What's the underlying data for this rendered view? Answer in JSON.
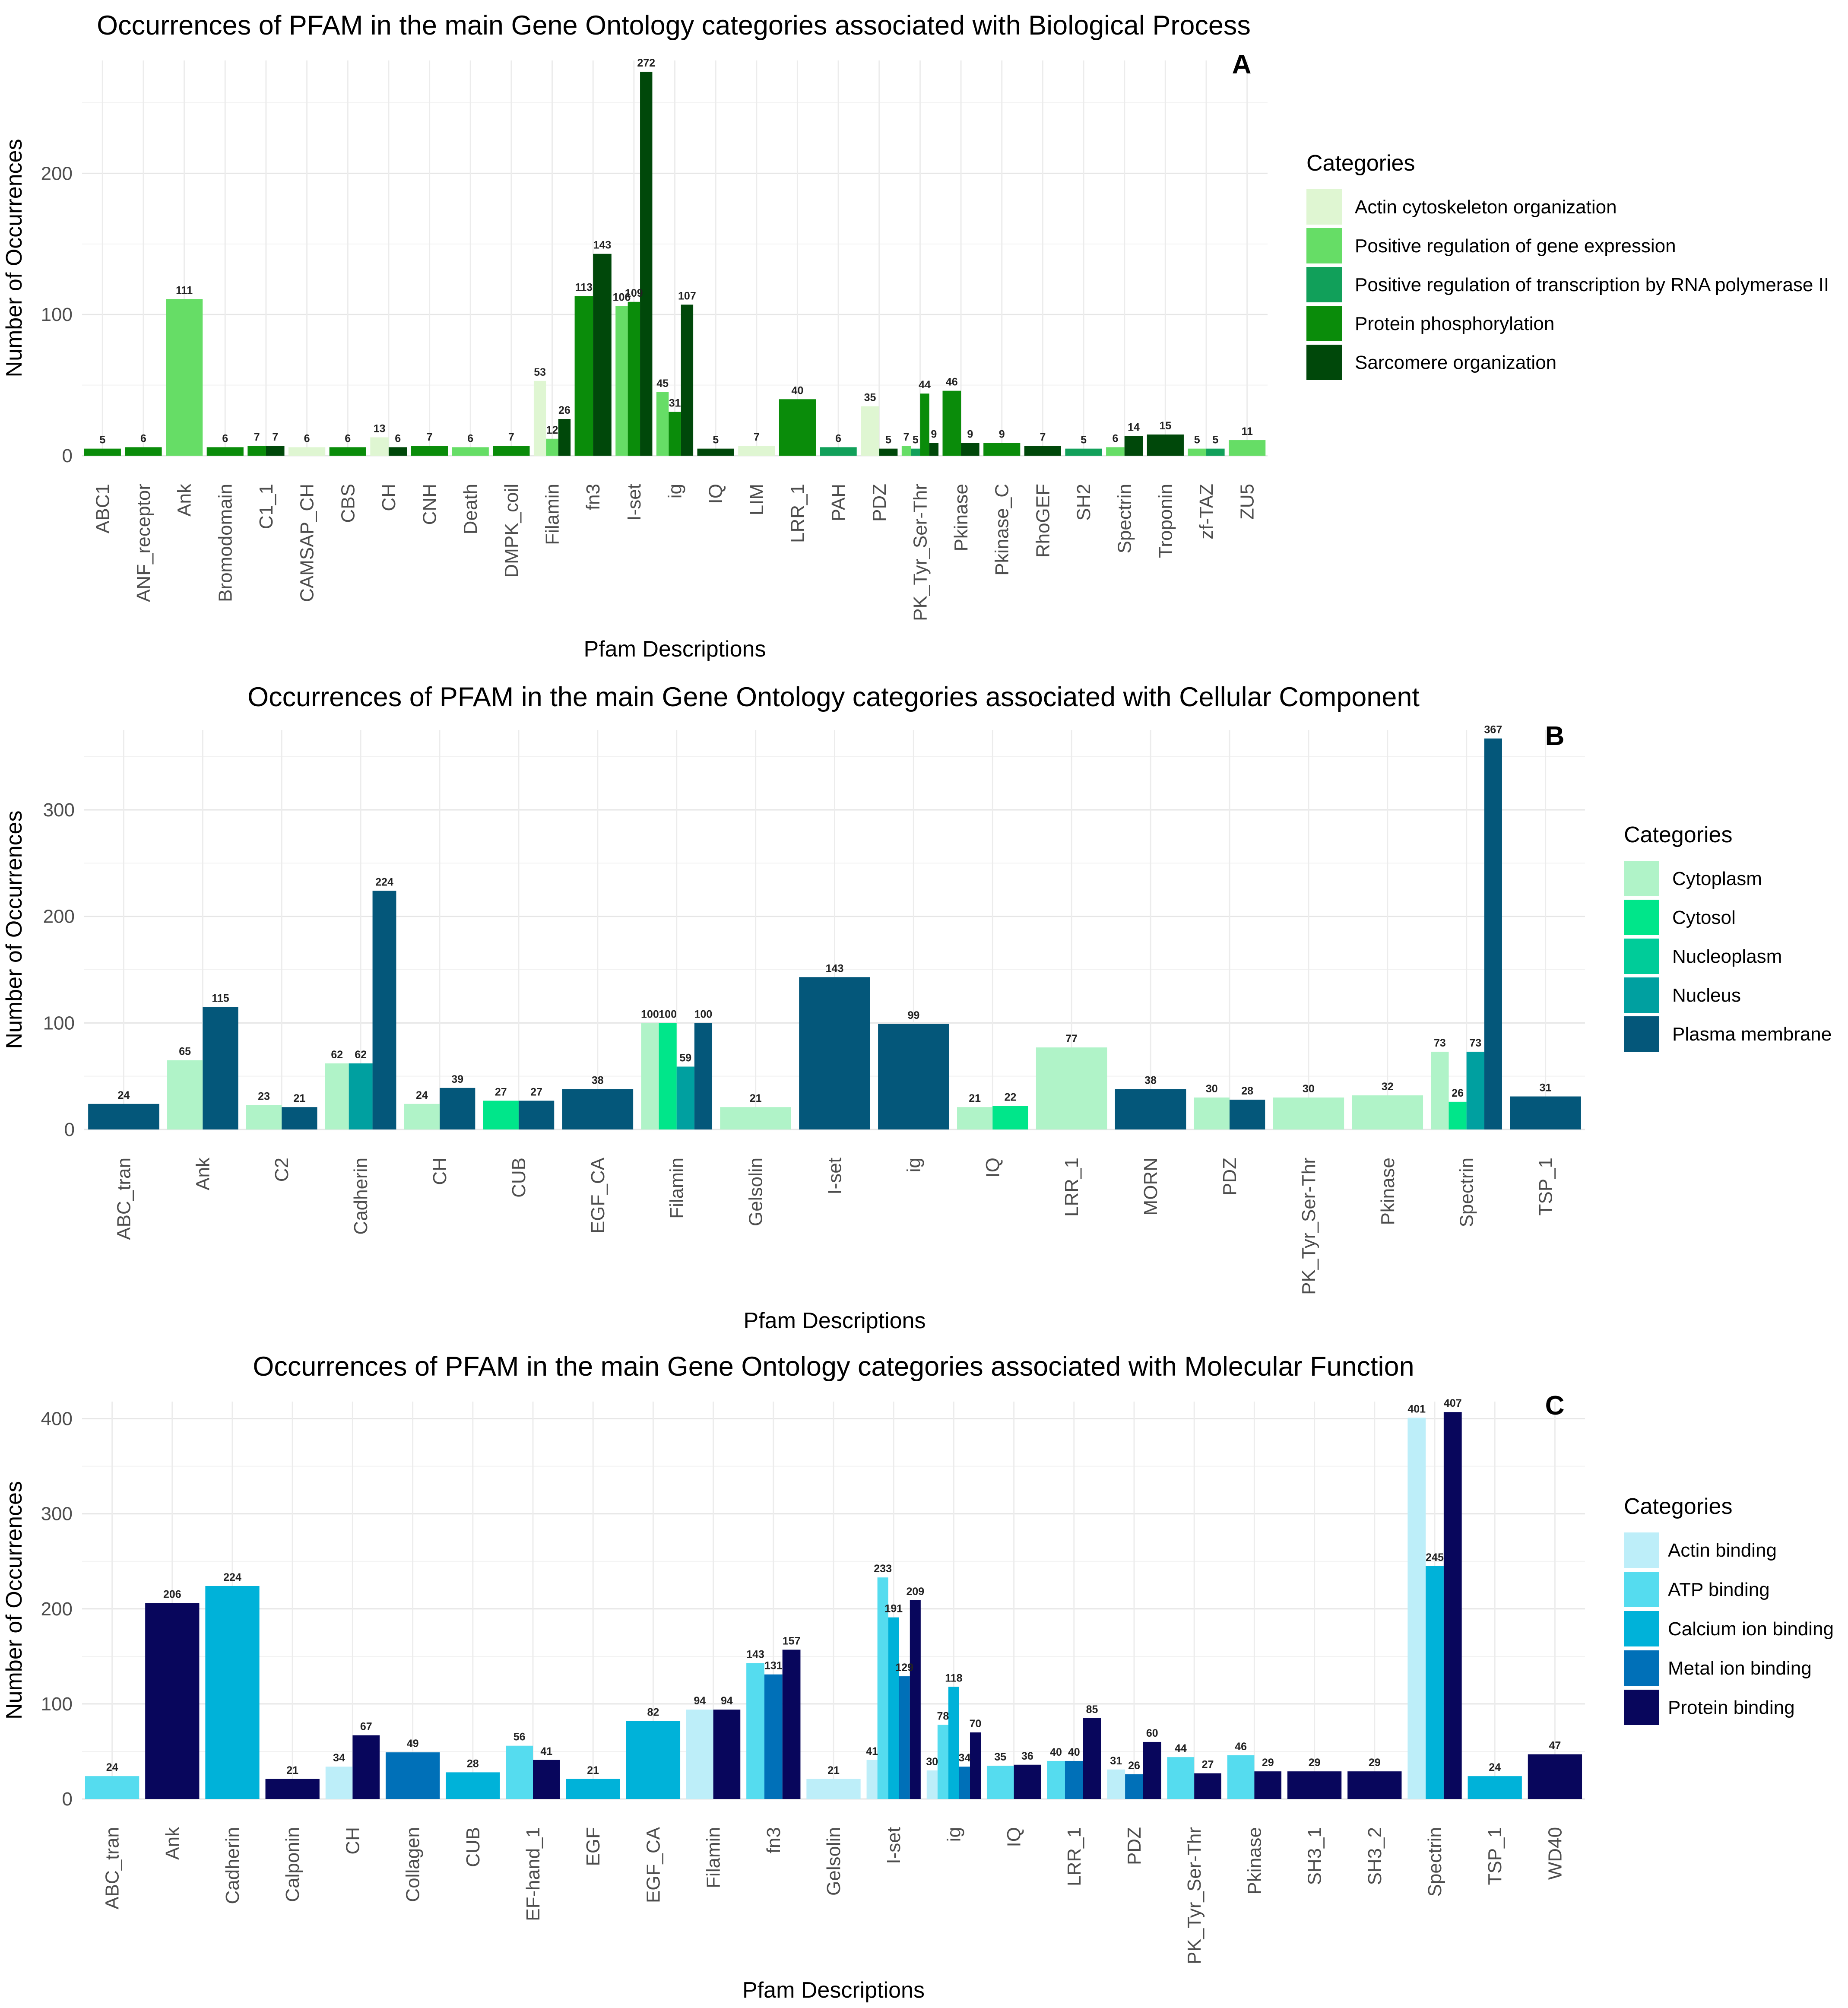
{
  "chart_data": [
    {
      "type": "bar",
      "panel": "A",
      "title": "Occurrences of PFAM in the main Gene Ontology categories associated with Biological Process",
      "xlabel": "Pfam Descriptions",
      "ylabel": "Number of Occurrences",
      "ylim": [
        0,
        280
      ],
      "yticks": [
        0,
        100,
        200
      ],
      "grid": true,
      "legend_title": "Categories",
      "legend_position": "right",
      "categories": [
        "ABC1",
        "ANF_receptor",
        "Ank",
        "Bromodomain",
        "C1_1",
        "CAMSAP_CH",
        "CBS",
        "CH",
        "CNH",
        "Death",
        "DMPK_coil",
        "Filamin",
        "fn3",
        "I-set",
        "ig",
        "IQ",
        "LIM",
        "LRR_1",
        "PAH",
        "PDZ",
        "PK_Tyr_Ser-Thr",
        "Pkinase",
        "Pkinase_C",
        "RhoGEF",
        "SH2",
        "Spectrin",
        "Troponin",
        "zf-TAZ",
        "ZU5"
      ],
      "series": [
        {
          "name": "Actin cytoskeleton organization",
          "color": "#dff6d2",
          "values": [
            null,
            null,
            null,
            null,
            null,
            6,
            null,
            13,
            null,
            null,
            null,
            53,
            null,
            null,
            null,
            null,
            7,
            null,
            null,
            35,
            null,
            null,
            null,
            null,
            null,
            null,
            null,
            null,
            null
          ]
        },
        {
          "name": "Positive regulation of gene expression",
          "color": "#66dd66",
          "values": [
            null,
            null,
            111,
            null,
            null,
            null,
            null,
            null,
            null,
            6,
            null,
            12,
            null,
            106,
            45,
            null,
            null,
            null,
            null,
            null,
            7,
            null,
            null,
            null,
            null,
            6,
            null,
            5,
            11
          ]
        },
        {
          "name": "Positive regulation of transcription by RNA polymerase II",
          "color": "#11a05a",
          "values": [
            null,
            null,
            null,
            null,
            null,
            null,
            null,
            null,
            null,
            null,
            null,
            null,
            null,
            null,
            null,
            null,
            null,
            null,
            6,
            null,
            5,
            null,
            null,
            null,
            5,
            null,
            null,
            5,
            null
          ]
        },
        {
          "name": "Protein phosphorylation",
          "color": "#0a8c0a",
          "values": [
            5,
            6,
            null,
            6,
            7,
            null,
            6,
            null,
            7,
            null,
            7,
            null,
            113,
            109,
            31,
            null,
            null,
            40,
            null,
            null,
            44,
            46,
            9,
            null,
            null,
            null,
            null,
            null,
            null
          ]
        },
        {
          "name": "Sarcomere organization",
          "color": "#00480a",
          "values": [
            null,
            null,
            null,
            null,
            7,
            null,
            null,
            6,
            null,
            null,
            null,
            26,
            143,
            272,
            107,
            5,
            null,
            null,
            null,
            5,
            9,
            9,
            null,
            7,
            null,
            14,
            15,
            null,
            null
          ]
        }
      ]
    },
    {
      "type": "bar",
      "panel": "B",
      "title": "Occurrences of PFAM in the main Gene Ontology categories associated with Cellular Component",
      "xlabel": "Pfam Descriptions",
      "ylabel": "Number of Occurrences",
      "ylim": [
        0,
        375
      ],
      "yticks": [
        0,
        100,
        200,
        300
      ],
      "grid": true,
      "legend_title": "Categories",
      "legend_position": "right",
      "categories": [
        "ABC_tran",
        "Ank",
        "C2",
        "Cadherin",
        "CH",
        "CUB",
        "EGF_CA",
        "Filamin",
        "Gelsolin",
        "I-set",
        "ig",
        "IQ",
        "LRR_1",
        "MORN",
        "PDZ",
        "PK_Tyr_Ser-Thr",
        "Pkinase",
        "Spectrin",
        "TSP_1"
      ],
      "series": [
        {
          "name": "Cytoplasm",
          "color": "#b0f3c8",
          "values": [
            null,
            65,
            23,
            62,
            24,
            null,
            null,
            100,
            21,
            null,
            null,
            21,
            77,
            null,
            30,
            30,
            32,
            73,
            null
          ]
        },
        {
          "name": "Cytosol",
          "color": "#00e68a",
          "values": [
            null,
            null,
            null,
            null,
            null,
            27,
            null,
            100,
            null,
            null,
            null,
            22,
            null,
            null,
            null,
            null,
            null,
            26,
            null
          ]
        },
        {
          "name": "Nucleoplasm",
          "color": "#00cc99",
          "values": [
            null,
            null,
            null,
            null,
            null,
            null,
            null,
            null,
            null,
            null,
            null,
            null,
            null,
            null,
            null,
            null,
            null,
            null,
            null
          ]
        },
        {
          "name": "Nucleus",
          "color": "#00a0a0",
          "values": [
            null,
            null,
            null,
            62,
            null,
            null,
            null,
            59,
            null,
            null,
            null,
            null,
            null,
            null,
            null,
            null,
            null,
            73,
            null
          ]
        },
        {
          "name": "Plasma membrane",
          "color": "#04577a",
          "values": [
            24,
            115,
            21,
            224,
            39,
            27,
            38,
            100,
            null,
            143,
            99,
            null,
            null,
            38,
            28,
            null,
            null,
            367,
            31
          ]
        }
      ]
    },
    {
      "type": "bar",
      "panel": "C",
      "title": "Occurrences of PFAM in the main Gene Ontology categories associated with Molecular Function",
      "xlabel": "Pfam Descriptions",
      "ylabel": "Number of Occurrences",
      "ylim": [
        0,
        418
      ],
      "yticks": [
        0,
        100,
        200,
        300,
        400
      ],
      "grid": true,
      "legend_title": "Categories",
      "legend_position": "right",
      "categories": [
        "ABC_tran",
        "Ank",
        "Cadherin",
        "Calponin",
        "CH",
        "Collagen",
        "CUB",
        "EF-hand_1",
        "EGF",
        "EGF_CA",
        "Filamin",
        "fn3",
        "Gelsolin",
        "I-set",
        "ig",
        "IQ",
        "LRR_1",
        "PDZ",
        "PK_Tyr_Ser-Thr",
        "Pkinase",
        "SH3_1",
        "SH3_2",
        "Spectrin",
        "TSP_1",
        "WD40"
      ],
      "series": [
        {
          "name": "Actin binding",
          "color": "#bdeef9",
          "values": [
            null,
            null,
            null,
            null,
            34,
            null,
            null,
            null,
            null,
            null,
            94,
            null,
            21,
            41,
            30,
            null,
            null,
            31,
            null,
            null,
            null,
            null,
            401,
            null,
            null
          ]
        },
        {
          "name": "ATP binding",
          "color": "#55dcef",
          "values": [
            24,
            null,
            null,
            null,
            null,
            null,
            null,
            56,
            null,
            null,
            null,
            143,
            null,
            233,
            78,
            35,
            40,
            null,
            44,
            46,
            null,
            null,
            null,
            null,
            null
          ]
        },
        {
          "name": "Calcium ion binding",
          "color": "#00b2d9",
          "values": [
            null,
            null,
            224,
            null,
            null,
            null,
            28,
            null,
            21,
            82,
            null,
            null,
            null,
            191,
            118,
            null,
            null,
            null,
            null,
            null,
            null,
            null,
            245,
            24,
            null
          ]
        },
        {
          "name": "Metal ion binding",
          "color": "#0070b8",
          "values": [
            null,
            null,
            null,
            null,
            null,
            49,
            null,
            null,
            null,
            null,
            null,
            131,
            null,
            129,
            34,
            null,
            40,
            26,
            null,
            null,
            null,
            null,
            null,
            null,
            null
          ]
        },
        {
          "name": "Protein binding",
          "color": "#08065c",
          "values": [
            null,
            206,
            null,
            21,
            67,
            null,
            null,
            41,
            null,
            null,
            94,
            157,
            null,
            209,
            70,
            36,
            85,
            60,
            27,
            29,
            29,
            29,
            407,
            null,
            47
          ]
        }
      ]
    }
  ]
}
